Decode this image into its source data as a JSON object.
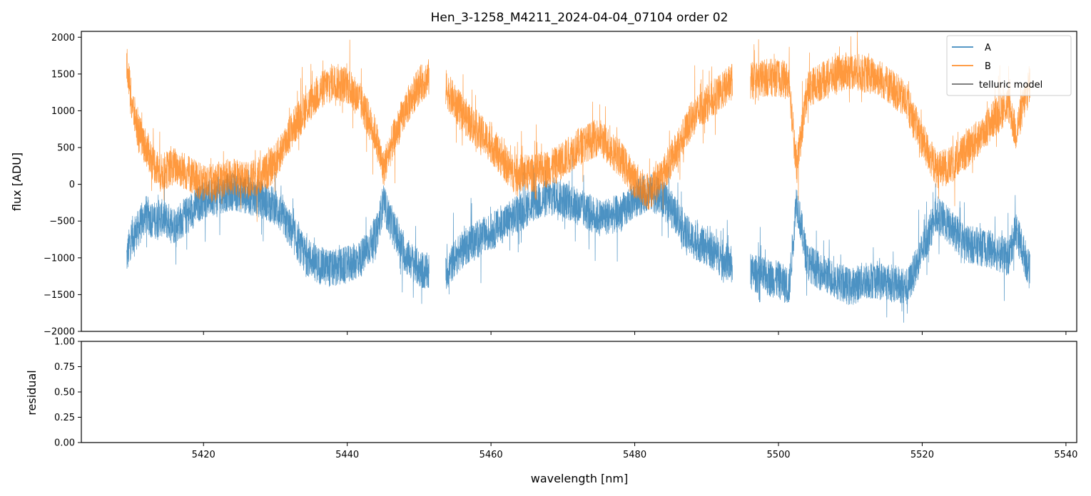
{
  "chart_data": [
    {
      "type": "line",
      "title": "Hen_3-1258_M4211_2024-04-04_07104  order 02",
      "xlabel": "",
      "ylabel": "flux [ADU]",
      "xlim": [
        5403,
        5541.5
      ],
      "ylim": [
        -2000,
        2080
      ],
      "yticks": [
        -2000,
        -1500,
        -1000,
        -500,
        0,
        500,
        1000,
        1500,
        2000
      ],
      "ytick_labels": [
        "−2000",
        "−1500",
        "−1000",
        "−500",
        "0",
        "500",
        "1000",
        "1500",
        "2000"
      ],
      "xticks": [
        5420,
        5440,
        5460,
        5480,
        5500,
        5520,
        5540
      ],
      "grid": false,
      "legend_position": "top-right",
      "series": [
        {
          "name": "A",
          "color": "#1f77b4",
          "x": [
            5409.3,
            5410,
            5411,
            5412,
            5413,
            5414,
            5415,
            5416,
            5418,
            5420,
            5422,
            5424,
            5426,
            5428,
            5430,
            5431,
            5432,
            5434,
            5436,
            5438,
            5440,
            5442,
            5444,
            5445,
            5446,
            5448,
            5450,
            5451.3,
            5453.8,
            5455,
            5457,
            5460,
            5463,
            5466,
            5469,
            5472,
            5475,
            5478,
            5480,
            5482,
            5484,
            5486,
            5487,
            5488,
            5490,
            5492,
            5493.5,
            5496.2,
            5498,
            5500,
            5501.5,
            5502.5,
            5504,
            5506,
            5508,
            5510,
            5512,
            5514,
            5516,
            5518,
            5520,
            5522,
            5524,
            5526,
            5528,
            5530,
            5532,
            5533,
            5535
          ],
          "values": [
            -1000,
            -700,
            -600,
            -400,
            -500,
            -450,
            -500,
            -550,
            -400,
            -200,
            -150,
            -100,
            -150,
            -200,
            -300,
            -450,
            -600,
            -950,
            -1100,
            -1150,
            -1100,
            -1000,
            -700,
            -250,
            -500,
            -950,
            -1150,
            -1200,
            -1200,
            -1000,
            -800,
            -650,
            -450,
            -250,
            -150,
            -300,
            -450,
            -400,
            -200,
            -100,
            -200,
            -450,
            -650,
            -750,
            -850,
            -1000,
            -1100,
            -1200,
            -1250,
            -1300,
            -1400,
            -200,
            -1050,
            -1200,
            -1300,
            -1400,
            -1300,
            -1300,
            -1350,
            -1400,
            -900,
            -400,
            -600,
            -800,
            -850,
            -900,
            -1000,
            -600,
            -1200
          ]
        },
        {
          "name": "B",
          "color": "#ff7f0e",
          "x": [
            5409.3,
            5410,
            5411,
            5412,
            5413,
            5414,
            5415,
            5416,
            5418,
            5420,
            5422,
            5424,
            5426,
            5428,
            5430,
            5431,
            5432,
            5434,
            5436,
            5438,
            5440,
            5442,
            5444,
            5445,
            5446,
            5448,
            5450,
            5451.3,
            5453.8,
            5455,
            5457,
            5460,
            5463,
            5466,
            5469,
            5472,
            5475,
            5478,
            5480,
            5482,
            5484,
            5486,
            5487,
            5488,
            5490,
            5492,
            5493.5,
            5496.2,
            5498,
            5500,
            5501.5,
            5502.5,
            5504,
            5506,
            5508,
            5510,
            5512,
            5514,
            5516,
            5518,
            5520,
            5522,
            5524,
            5526,
            5528,
            5530,
            5532,
            5533,
            5535
          ],
          "values": [
            1700,
            1100,
            700,
            500,
            300,
            150,
            200,
            250,
            150,
            0,
            50,
            100,
            50,
            100,
            300,
            500,
            700,
            1000,
            1250,
            1400,
            1350,
            1100,
            650,
            200,
            500,
            1000,
            1350,
            1450,
            1300,
            1100,
            850,
            550,
            150,
            150,
            250,
            500,
            650,
            350,
            50,
            -100,
            150,
            500,
            700,
            900,
            1100,
            1250,
            1400,
            1400,
            1450,
            1450,
            1400,
            200,
            1300,
            1400,
            1500,
            1550,
            1500,
            1450,
            1300,
            1100,
            600,
            200,
            250,
            450,
            650,
            900,
            1100,
            700,
            1400
          ]
        },
        {
          "name": "telluric model",
          "color": "#555555",
          "x": [],
          "values": []
        }
      ]
    },
    {
      "type": "line",
      "title": "",
      "xlabel": "wavelength [nm]",
      "ylabel": "residual",
      "xlim": [
        5403,
        5541.5
      ],
      "ylim": [
        0,
        1
      ],
      "yticks": [
        0,
        0.25,
        0.5,
        0.75,
        1.0
      ],
      "ytick_labels": [
        "0.00",
        "0.25",
        "0.50",
        "0.75",
        "1.00"
      ],
      "xticks": [
        5420,
        5440,
        5460,
        5480,
        5500,
        5520,
        5540
      ],
      "xtick_labels": [
        "5420",
        "5440",
        "5460",
        "5480",
        "5500",
        "5520",
        "5540"
      ],
      "grid": false,
      "series": []
    }
  ]
}
